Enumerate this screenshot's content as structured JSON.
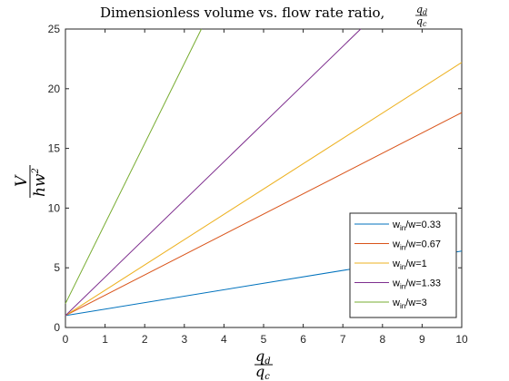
{
  "chart_data": {
    "type": "line",
    "title": "Dimensionless volume vs. flow rate ratio,",
    "title_fraction": {
      "numerator": "q",
      "numerator_sub": "d",
      "denominator": "q",
      "denominator_sub": "c"
    },
    "ylabel_fraction": {
      "numerator": "V",
      "denominator": "hw",
      "denominator_sup": "2"
    },
    "xlabel_fraction": {
      "numerator": "q",
      "numerator_sub": "d",
      "denominator": "q",
      "denominator_sub": "c"
    },
    "xlim": [
      0,
      10
    ],
    "ylim": [
      0,
      25
    ],
    "xticks": [
      "0",
      "1",
      "2",
      "3",
      "4",
      "5",
      "6",
      "7",
      "8",
      "9",
      "10"
    ],
    "yticks": [
      "0",
      "5",
      "10",
      "15",
      "20",
      "25"
    ],
    "grid": false,
    "legend_position": "bottom-right",
    "series": [
      {
        "name_main": "w",
        "name_sub": "in",
        "name_rest": "/w=0.33",
        "color": "#0072BD",
        "x": [
          0,
          10
        ],
        "y": [
          1.0,
          6.4
        ]
      },
      {
        "name_main": "w",
        "name_sub": "in",
        "name_rest": "/w=0.67",
        "color": "#D95319",
        "x": [
          0,
          10
        ],
        "y": [
          1.0,
          18.0
        ]
      },
      {
        "name_main": "w",
        "name_sub": "in",
        "name_rest": "/w=1",
        "color": "#EDB120",
        "x": [
          0,
          10
        ],
        "y": [
          1.0,
          22.2
        ]
      },
      {
        "name_main": "w",
        "name_sub": "in",
        "name_rest": "/w=1.33",
        "color": "#7E2F8E",
        "x": [
          0,
          7.45
        ],
        "y": [
          1.0,
          25.0
        ]
      },
      {
        "name_main": "w",
        "name_sub": "in",
        "name_rest": "/w=3",
        "color": "#77AC30",
        "x": [
          0,
          3.43
        ],
        "y": [
          2.0,
          25.0
        ]
      }
    ]
  }
}
